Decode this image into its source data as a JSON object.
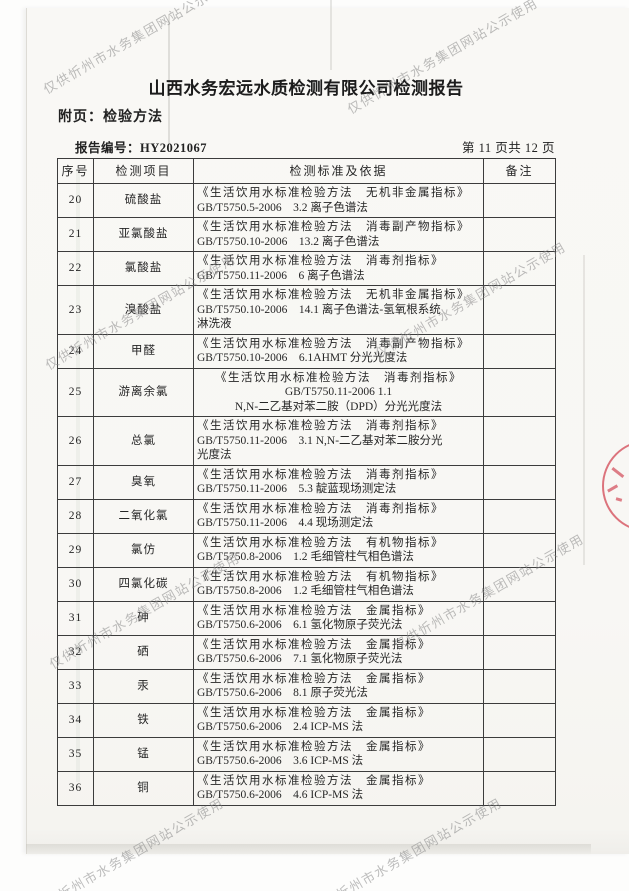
{
  "page": {
    "title": "山西水务宏远水质检测有限公司检测报告",
    "subtitle": "附页：检验方法",
    "report_no_label": "报告编号：",
    "report_no": "HY2021067",
    "page_indicator": "第 11 页共 12 页"
  },
  "watermark": {
    "text": "仅供忻州市水务集团网站公示使用",
    "color": "#888888"
  },
  "stamp": {
    "color": "#cc2c3c"
  },
  "table": {
    "headers": [
      "序号",
      "检测项目",
      "检测标准及依据",
      "备注"
    ],
    "rows": [
      {
        "no": "20",
        "item": "硫酸盐",
        "standard": "《生活饮用水标准检验方法　无机非金属指标》\nGB/T5750.5-2006　3.2 离子色谱法",
        "note": ""
      },
      {
        "no": "21",
        "item": "亚氯酸盐",
        "standard": "《生活饮用水标准检验方法　消毒副产物指标》\nGB/T5750.10-2006　13.2 离子色谱法",
        "note": ""
      },
      {
        "no": "22",
        "item": "氯酸盐",
        "standard": "《生活饮用水标准检验方法　消毒剂指标》\nGB/T5750.11-2006　6 离子色谱法",
        "note": ""
      },
      {
        "no": "23",
        "item": "溴酸盐",
        "standard": "《生活饮用水标准检验方法　无机非金属指标》\nGB/T5750.10-2006　14.1 离子色谱法-氢氧根系统\n淋洗液",
        "note": ""
      },
      {
        "no": "24",
        "item": "甲醛",
        "standard": "《生活饮用水标准检验方法　消毒副产物指标》\nGB/T5750.10-2006　6.1AHMT 分光光度法",
        "note": ""
      },
      {
        "no": "25",
        "item": "游离余氯",
        "standard": "《生活饮用水标准检验方法　消毒剂指标》\nGB/T5750.11-2006 1.1\nN,N-二乙基对苯二胺（DPD）分光光度法",
        "note": "",
        "center": true
      },
      {
        "no": "26",
        "item": "总氯",
        "standard": "《生活饮用水标准检验方法　消毒剂指标》\nGB/T5750.11-2006　3.1 N,N-二乙基对苯二胺分光\n光度法",
        "note": ""
      },
      {
        "no": "27",
        "item": "臭氧",
        "standard": "《生活饮用水标准检验方法　消毒剂指标》\nGB/T5750.11-2006　5.3 靛蓝现场测定法",
        "note": ""
      },
      {
        "no": "28",
        "item": "二氧化氯",
        "standard": "《生活饮用水标准检验方法　消毒剂指标》\nGB/T5750.11-2006　4.4 现场测定法",
        "note": ""
      },
      {
        "no": "29",
        "item": "氯仿",
        "standard": "《生活饮用水标准检验方法　有机物指标》\nGB/T5750.8-2006　1.2 毛细管柱气相色谱法",
        "note": ""
      },
      {
        "no": "30",
        "item": "四氯化碳",
        "standard": "《生活饮用水标准检验方法　有机物指标》\nGB/T5750.8-2006　1.2 毛细管柱气相色谱法",
        "note": ""
      },
      {
        "no": "31",
        "item": "砷",
        "standard": "《生活饮用水标准检验方法　金属指标》\nGB/T5750.6-2006　6.1 氢化物原子荧光法",
        "note": ""
      },
      {
        "no": "32",
        "item": "硒",
        "standard": "《生活饮用水标准检验方法　金属指标》\nGB/T5750.6-2006　7.1 氢化物原子荧光法",
        "note": ""
      },
      {
        "no": "33",
        "item": "汞",
        "standard": "《生活饮用水标准检验方法　金属指标》\nGB/T5750.6-2006　8.1 原子荧光法",
        "note": ""
      },
      {
        "no": "34",
        "item": "铁",
        "standard": "《生活饮用水标准检验方法　金属指标》\nGB/T5750.6-2006　2.4 ICP-MS 法",
        "note": ""
      },
      {
        "no": "35",
        "item": "锰",
        "standard": "《生活饮用水标准检验方法　金属指标》\nGB/T5750.6-2006　3.6 ICP-MS 法",
        "note": ""
      },
      {
        "no": "36",
        "item": "铜",
        "standard": "《生活饮用水标准检验方法　金属指标》\nGB/T5750.6-2006　4.6 ICP-MS 法",
        "note": ""
      }
    ]
  }
}
